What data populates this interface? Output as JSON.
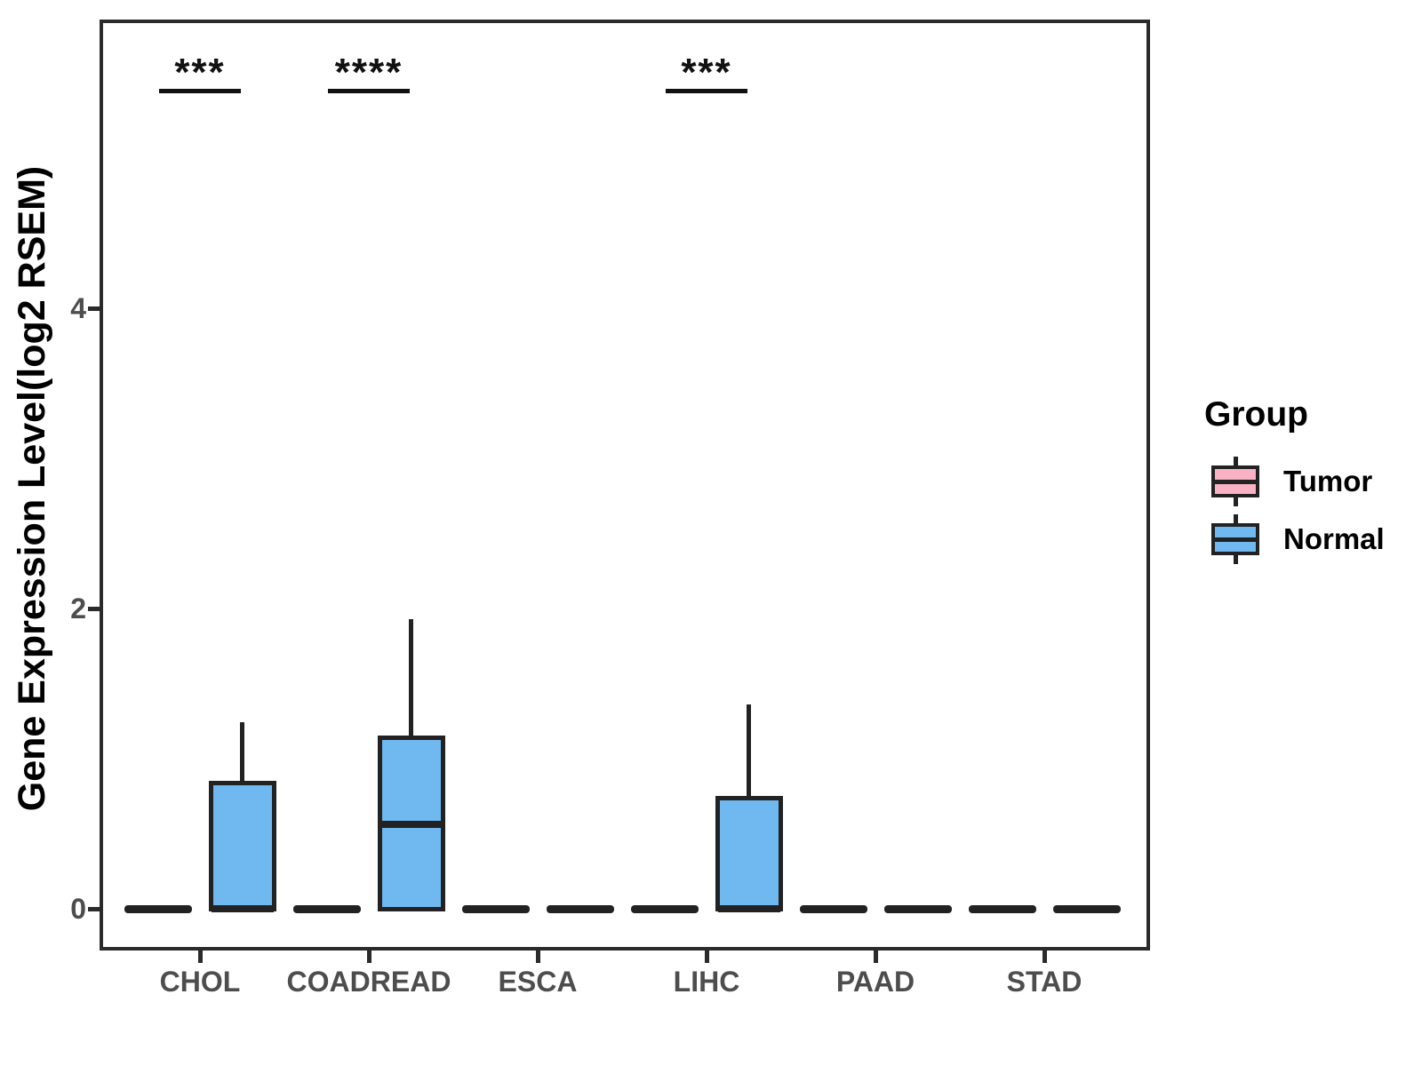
{
  "colors": {
    "tumor_fill": "#F9B1C4",
    "normal_fill": "#6FB9F0",
    "ink": "#222222",
    "panel_border": "#2B2B2B",
    "axis_text": "#4D4D4D",
    "title_text": "#000000"
  },
  "legend": {
    "title": "Group",
    "items": [
      {
        "label": "Tumor",
        "color": "#F9B1C4"
      },
      {
        "label": "Normal",
        "color": "#6FB9F0"
      }
    ]
  },
  "chart_data": {
    "type": "boxplot",
    "title": "",
    "xlabel": "",
    "ylabel": "Gene Expression Level(log2 RSEM)",
    "categories": [
      "CHOL",
      "COADREAD",
      "ESCA",
      "LIHC",
      "PAAD",
      "STAD"
    ],
    "yticks": [
      {
        "value": 0,
        "label": "0"
      },
      {
        "value": 2,
        "label": "2"
      },
      {
        "value": 4,
        "label": "4"
      }
    ],
    "ylim": [
      -0.28,
      5.92
    ],
    "grid": false,
    "legend_position": "right",
    "series": [
      {
        "name": "Tumor",
        "color": "#F9B1C4",
        "boxes": [
          {
            "lo": 0,
            "q1": 0,
            "med": 0,
            "q3": 0,
            "hi": 0
          },
          {
            "lo": 0,
            "q1": 0,
            "med": 0,
            "q3": 0,
            "hi": 0
          },
          {
            "lo": 0,
            "q1": 0,
            "med": 0,
            "q3": 0,
            "hi": 0
          },
          {
            "lo": 0,
            "q1": 0,
            "med": 0,
            "q3": 0,
            "hi": 0
          },
          {
            "lo": 0,
            "q1": 0,
            "med": 0,
            "q3": 0,
            "hi": 0
          },
          {
            "lo": 0,
            "q1": 0,
            "med": 0,
            "q3": 0,
            "hi": 0
          }
        ]
      },
      {
        "name": "Normal",
        "color": "#6FB9F0",
        "boxes": [
          {
            "lo": 0,
            "q1": 0,
            "med": 0,
            "q3": 0.84,
            "hi": 1.24
          },
          {
            "lo": 0,
            "q1": 0,
            "med": 0.56,
            "q3": 1.14,
            "hi": 1.93
          },
          {
            "lo": 0,
            "q1": 0,
            "med": 0,
            "q3": 0,
            "hi": 0
          },
          {
            "lo": 0,
            "q1": 0,
            "med": 0,
            "q3": 0.74,
            "hi": 1.36
          },
          {
            "lo": 0,
            "q1": 0,
            "med": 0,
            "q3": 0,
            "hi": 0
          },
          {
            "lo": 0,
            "q1": 0,
            "med": 0,
            "q3": 0,
            "hi": 0
          }
        ]
      }
    ],
    "significance": [
      {
        "category": "CHOL",
        "label": "***"
      },
      {
        "category": "COADREAD",
        "label": "****"
      },
      {
        "category": "LIHC",
        "label": "***"
      }
    ]
  }
}
